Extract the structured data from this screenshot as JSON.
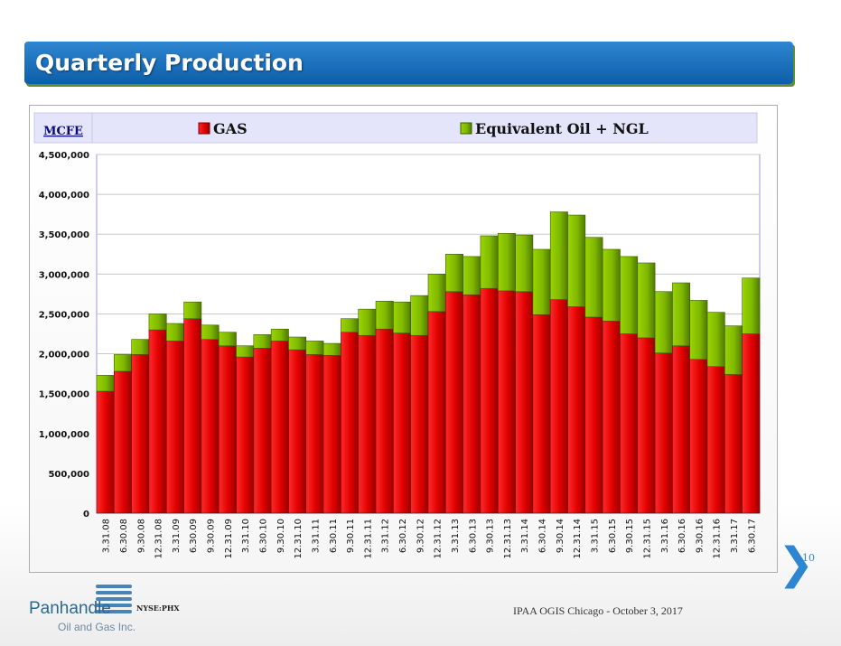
{
  "slide": {
    "title": "Quarterly Production",
    "page_number": "10",
    "ticker": "NYSE:PHX",
    "footer": "IPAA OGIS Chicago - October 3, 2017",
    "logo_main": "Panhandle",
    "logo_sub": "Oil and Gas Inc.",
    "arrow_icon": "chevron-right-icon"
  },
  "colors": {
    "gas": "#e00000",
    "gas_dark": "#a50000",
    "oil": "#7fb800",
    "oil_dark": "#4f7a00",
    "legend_bg": "#e4e4fa",
    "accent": "#0d5ea9"
  },
  "chart_data": {
    "type": "bar",
    "stacked": true,
    "unit_label": "MCFE",
    "ylim": [
      0,
      4500000
    ],
    "yticks": [
      0,
      500000,
      1000000,
      1500000,
      2000000,
      2500000,
      3000000,
      3500000,
      4000000,
      4500000
    ],
    "ytick_labels": [
      "0",
      "500,000",
      "1,000,000",
      "1,500,000",
      "2,000,000",
      "2,500,000",
      "3,000,000",
      "3,500,000",
      "4,000,000",
      "4,500,000"
    ],
    "legend_position": "top",
    "categories": [
      "3.31.08",
      "6.30.08",
      "9.30.08",
      "12.31.08",
      "3.31.09",
      "6.30.09",
      "9.30.09",
      "12.31.09",
      "3.31.10",
      "6.30.10",
      "9.30.10",
      "12.31.10",
      "3.31.11",
      "6.30.11",
      "9.30.11",
      "12.31.11",
      "3.31.12",
      "6.30.12",
      "9.30.12",
      "12.31.12",
      "3.31.13",
      "6.30.13",
      "9.30.13",
      "12.31.13",
      "3.31.14",
      "6.30.14",
      "9.30.14",
      "12.31.14",
      "3.31.15",
      "6.30.15",
      "9.30.15",
      "12.31.15",
      "3.31.16",
      "6.30.16",
      "9.30.16",
      "12.31.16",
      "3.31.17",
      "6.30.17"
    ],
    "series": [
      {
        "name": "GAS",
        "values": [
          1530000,
          1780000,
          1990000,
          2300000,
          2160000,
          2440000,
          2180000,
          2100000,
          1960000,
          2070000,
          2160000,
          2050000,
          1990000,
          1980000,
          2270000,
          2230000,
          2310000,
          2260000,
          2230000,
          2530000,
          2780000,
          2740000,
          2820000,
          2790000,
          2780000,
          2490000,
          2680000,
          2590000,
          2460000,
          2410000,
          2250000,
          2200000,
          2010000,
          2100000,
          1930000,
          1840000,
          1740000,
          2250000
        ]
      },
      {
        "name": "Equivalent Oil + NGL",
        "values": [
          200000,
          210000,
          190000,
          200000,
          220000,
          210000,
          180000,
          170000,
          140000,
          170000,
          150000,
          160000,
          170000,
          150000,
          170000,
          330000,
          350000,
          390000,
          500000,
          470000,
          470000,
          480000,
          660000,
          720000,
          710000,
          820000,
          1100000,
          1150000,
          1000000,
          900000,
          970000,
          940000,
          770000,
          790000,
          740000,
          680000,
          610000,
          700000
        ]
      }
    ]
  }
}
